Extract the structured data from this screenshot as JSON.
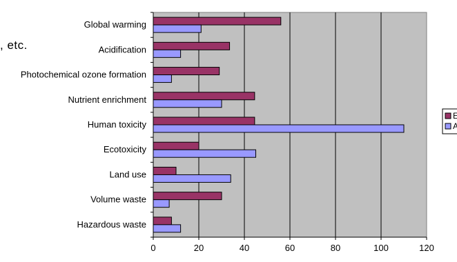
{
  "overlay_text": ", etc.",
  "chart_data": {
    "type": "bar",
    "orientation": "horizontal",
    "categories": [
      "Global warming",
      "Acidification",
      "Photochemical ozone formation",
      "Nutrient enrichment",
      "Human toxicity",
      "Ecotoxicity",
      "Land use",
      "Volume waste",
      "Hazardous waste"
    ],
    "series": [
      {
        "name": "E",
        "color": "#993366",
        "values": [
          56,
          33.5,
          29,
          44.5,
          44.5,
          20,
          10,
          30,
          8
        ]
      },
      {
        "name": "A",
        "color": "#9999ff",
        "values": [
          21,
          12,
          8,
          30,
          110,
          45,
          34,
          7,
          12
        ]
      }
    ],
    "xlim": [
      0,
      120
    ],
    "xticks": [
      0,
      20,
      40,
      60,
      80,
      100,
      120
    ],
    "plot_background": "#c0c0c0",
    "grid": true,
    "legend_position": "right (partially cut off)"
  }
}
